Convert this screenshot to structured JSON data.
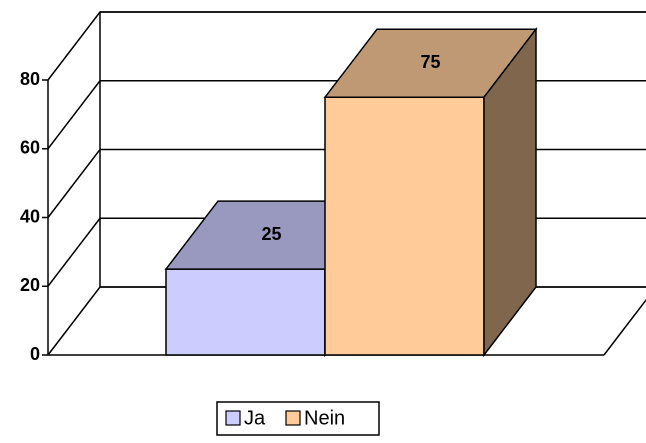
{
  "chart_data": {
    "type": "bar3d",
    "series": [
      {
        "name": "Ja",
        "color": "#ccccff",
        "values": [
          25
        ]
      },
      {
        "name": "Nein",
        "color": "#ffcc99",
        "values": [
          75
        ]
      }
    ],
    "ylim": [
      0,
      80
    ],
    "yticks": [
      0,
      20,
      40,
      60,
      80
    ],
    "grid": true,
    "legend": "bottom"
  }
}
